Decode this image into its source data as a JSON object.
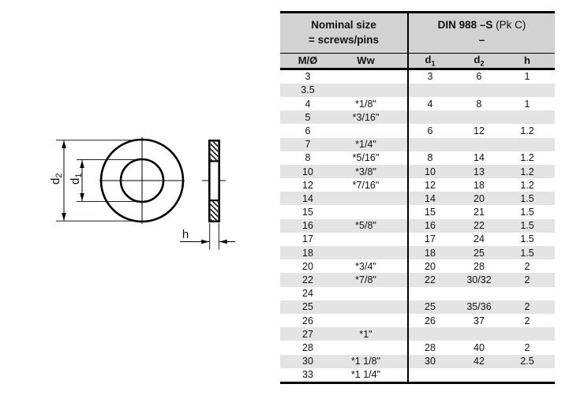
{
  "diagram": {
    "labels": {
      "d_base": "d",
      "d1_sub": "1",
      "d2_sub": "2",
      "h": "h"
    }
  },
  "table": {
    "header": {
      "left_title_line1": "Nominal size",
      "left_title_line2": "= screws/pins",
      "right_title_main": "DIN 988 –S",
      "right_title_paren": "(Pk C)",
      "right_title_line2": "–",
      "col_m": "M/Ø",
      "col_ww": "Ww",
      "col_d_base": "d",
      "col_d1_sub": "1",
      "col_d2_sub": "2",
      "col_h": "h"
    },
    "rows": [
      [
        "3",
        "",
        "3",
        "6",
        "1"
      ],
      [
        "3.5",
        "",
        "",
        "",
        ""
      ],
      [
        "4",
        "*1/8\"",
        "4",
        "8",
        "1"
      ],
      [
        "5",
        "*3/16\"",
        "",
        "",
        ""
      ],
      [
        "6",
        "",
        "6",
        "12",
        "1.2"
      ],
      [
        "7",
        "*1/4\"",
        "",
        "",
        ""
      ],
      [
        "8",
        "*5/16\"",
        "8",
        "14",
        "1.2"
      ],
      [
        "10",
        "*3/8\"",
        "10",
        "13",
        "1.2"
      ],
      [
        "12",
        "*7/16\"",
        "12",
        "18",
        "1.2"
      ],
      [
        "14",
        "",
        "14",
        "20",
        "1.5"
      ],
      [
        "15",
        "",
        "15",
        "21",
        "1.5"
      ],
      [
        "16",
        "*5/8\"",
        "16",
        "22",
        "1.5"
      ],
      [
        "17",
        "",
        "17",
        "24",
        "1.5"
      ],
      [
        "18",
        "",
        "18",
        "25",
        "1.5"
      ],
      [
        "20",
        "*3/4\"",
        "20",
        "28",
        "2"
      ],
      [
        "22",
        "*7/8\"",
        "22",
        "30/32",
        "2"
      ],
      [
        "24",
        "",
        "",
        "",
        ""
      ],
      [
        "25",
        "",
        "25",
        "35/36",
        "2"
      ],
      [
        "26",
        "",
        "26",
        "37",
        "2"
      ],
      [
        "27",
        "*1\"",
        "",
        "",
        ""
      ],
      [
        "28",
        "",
        "28",
        "40",
        "2"
      ],
      [
        "30",
        "*1 1/8\"",
        "30",
        "42",
        "2.5"
      ],
      [
        "33",
        "*1 1/4\"",
        "",
        "",
        ""
      ]
    ]
  },
  "colors": {
    "header_bg": "#d2d2d2",
    "row_alt_bg": "#e4e4e4",
    "line": "#000000"
  }
}
